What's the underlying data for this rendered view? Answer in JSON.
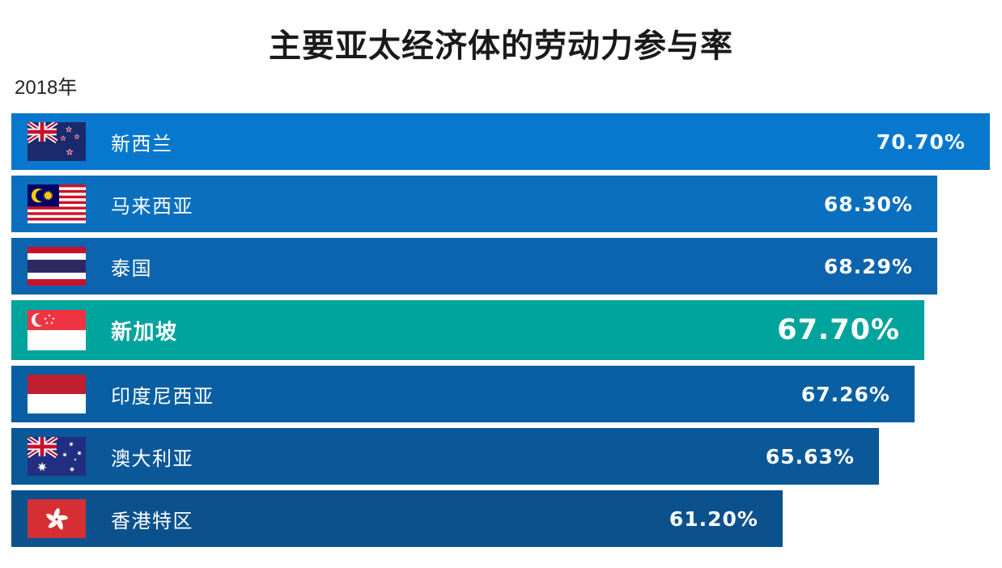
{
  "header": {
    "title": "主要亚太经济体的劳动力参与率",
    "period": "2018年"
  },
  "chart_data": {
    "type": "bar",
    "orientation": "horizontal",
    "title": "主要亚太经济体的劳动力参与率",
    "period": "2018年",
    "value_unit": "%",
    "grid": false,
    "legend": false,
    "value_axis": {
      "min": 25.8,
      "max": 70.7,
      "note": "bar lengths are not zero-based in source graphic"
    },
    "categories": [
      "新西兰",
      "马来西亚",
      "泰国",
      "新加坡",
      "印度尼西亚",
      "澳大利亚",
      "香港特区"
    ],
    "values": [
      70.7,
      68.3,
      68.29,
      67.7,
      67.26,
      65.63,
      61.2
    ],
    "highlighted_category": "新加坡",
    "highlight_color": "#00A49C",
    "rows": [
      {
        "country": "新西兰",
        "flag_icon": "new-zealand-flag-icon",
        "value": 70.7,
        "value_label": "70.70%",
        "bar_color": "#0878CF",
        "highlighted": false
      },
      {
        "country": "马来西亚",
        "flag_icon": "malaysia-flag-icon",
        "value": 68.3,
        "value_label": "68.30%",
        "bar_color": "#0A6FBE",
        "highlighted": false
      },
      {
        "country": "泰国",
        "flag_icon": "thailand-flag-icon",
        "value": 68.29,
        "value_label": "68.29%",
        "bar_color": "#0B64AD",
        "highlighted": false
      },
      {
        "country": "新加坡",
        "flag_icon": "singapore-flag-icon",
        "value": 67.7,
        "value_label": "67.70%",
        "bar_color": "#00A49C",
        "highlighted": true
      },
      {
        "country": "印度尼西亚",
        "flag_icon": "indonesia-flag-icon",
        "value": 67.26,
        "value_label": "67.26%",
        "bar_color": "#095FA3",
        "highlighted": false
      },
      {
        "country": "澳大利亚",
        "flag_icon": "australia-flag-icon",
        "value": 65.63,
        "value_label": "65.63%",
        "bar_color": "#0A5898",
        "highlighted": false
      },
      {
        "country": "香港特区",
        "flag_icon": "hong-kong-flag-icon",
        "value": 61.2,
        "value_label": "61.20%",
        "bar_color": "#0B518D",
        "highlighted": false
      }
    ]
  }
}
